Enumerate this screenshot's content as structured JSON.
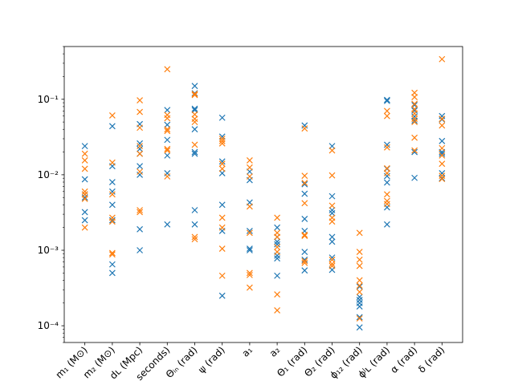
{
  "chart_data": {
    "type": "scatter",
    "yscale": "log",
    "ylim": [
      6e-05,
      0.5
    ],
    "grid": false,
    "marker": "x",
    "categories": [
      "m₁ (M⊙)",
      "m₂ (M⊙)",
      "dʟ (Mpc)",
      "seconds)",
      "Θᵢₙ (rad)",
      "ψ (rad)",
      "a₁",
      "a₂",
      "Θ₁ (rad)",
      "Θ₂ (rad)",
      "ϕ₁₂ (rad)",
      "ϕᴶʟ (rad)",
      "α (rad)",
      "δ (rad)"
    ],
    "y_ticks": [
      {
        "value": 0.0001,
        "label": "10⁻⁴"
      },
      {
        "value": 0.001,
        "label": "10⁻³"
      },
      {
        "value": 0.01,
        "label": "10⁻²"
      },
      {
        "value": 0.1,
        "label": "10⁻¹"
      }
    ],
    "series": [
      {
        "color": "#1f77b4",
        "values": [
          [
            0.024,
            0.0087,
            0.0055,
            0.005,
            0.0032,
            0.0025
          ],
          [
            0.044,
            0.013,
            0.008,
            0.006,
            0.004,
            0.0025,
            0.00065,
            0.0005
          ],
          [
            0.047,
            0.026,
            0.022,
            0.019,
            0.013,
            0.01,
            0.0019,
            0.001
          ],
          [
            0.072,
            0.046,
            0.029,
            0.018,
            0.0105,
            0.0022
          ],
          [
            0.15,
            0.12,
            0.075,
            0.072,
            0.04,
            0.02,
            0.019,
            0.0034,
            0.0022
          ],
          [
            0.057,
            0.032,
            0.015,
            0.0105,
            0.004,
            0.0018,
            0.00025
          ],
          [
            0.011,
            0.0085,
            0.0043,
            0.0018,
            0.00105,
            0.001
          ],
          [
            0.002,
            0.0015,
            0.0013,
            0.0012,
            0.00085,
            0.00078,
            0.00046
          ],
          [
            0.045,
            0.0075,
            0.0056,
            0.0026,
            0.0018,
            0.00095,
            0.00075,
            0.00054
          ],
          [
            0.024,
            0.0052,
            0.0034,
            0.0031,
            0.0015,
            0.0013,
            0.0008,
            0.00055
          ],
          [
            0.00033,
            0.00024,
            0.00022,
            0.0002,
            0.00018,
            0.00013,
            9.5e-05
          ],
          [
            0.098,
            0.095,
            0.025,
            0.012,
            0.0096,
            0.0079,
            0.0037,
            0.0022
          ],
          [
            0.084,
            0.071,
            0.059,
            0.052,
            0.02,
            0.0091
          ],
          [
            0.06,
            0.054,
            0.028,
            0.02,
            0.019,
            0.0105,
            0.009
          ]
        ]
      },
      {
        "color": "#ff7f0e",
        "values": [
          [
            0.019,
            0.0155,
            0.012,
            0.006,
            0.0055,
            0.0048,
            0.002
          ],
          [
            0.061,
            0.0145,
            0.0055,
            0.0027,
            0.0024,
            0.00092,
            0.00088
          ],
          [
            0.097,
            0.068,
            0.042,
            0.024,
            0.019,
            0.011,
            0.0034,
            0.0032
          ],
          [
            0.25,
            0.062,
            0.056,
            0.04,
            0.038,
            0.022,
            0.021,
            0.0095
          ],
          [
            0.118,
            0.114,
            0.063,
            0.055,
            0.05,
            0.025,
            0.0015,
            0.0014
          ],
          [
            0.03,
            0.028,
            0.026,
            0.014,
            0.012,
            0.0027,
            0.002,
            0.00105,
            0.00046
          ],
          [
            0.0155,
            0.0125,
            0.0095,
            0.0038,
            0.0017,
            0.0005,
            0.00047,
            0.00032
          ],
          [
            0.0027,
            0.0017,
            0.0015,
            0.0011,
            0.00095,
            0.00026,
            0.00016
          ],
          [
            0.0097,
            0.0078,
            0.0042,
            0.0016,
            0.00155,
            0.00072,
            0.00068,
            0.041
          ],
          [
            0.021,
            0.0098,
            0.0039,
            0.0027,
            0.0024,
            0.00075,
            0.00066,
            0.00062
          ],
          [
            0.0017,
            0.00095,
            0.00075,
            0.00062,
            0.0004,
            0.00034,
            0.00028,
            0.000125
          ],
          [
            0.07,
            0.06,
            0.023,
            0.0122,
            0.0105,
            0.0055,
            0.0045,
            0.0041
          ],
          [
            0.122,
            0.107,
            0.087,
            0.074,
            0.065,
            0.055,
            0.05,
            0.031,
            0.021
          ],
          [
            0.34,
            0.055,
            0.045,
            0.0225,
            0.018,
            0.014,
            0.0097,
            0.0088
          ]
        ]
      }
    ]
  }
}
